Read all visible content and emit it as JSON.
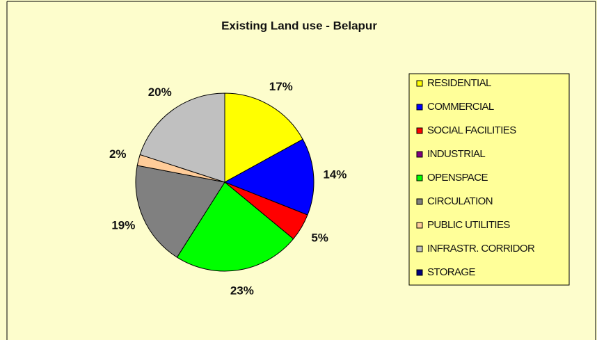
{
  "chart_data": {
    "type": "pie",
    "title": "Existing Land use - Belapur",
    "categories": [
      "RESIDENTIAL",
      "COMMERCIAL",
      "SOCIAL FACILITIES",
      "INDUSTRIAL",
      "OPENSPACE",
      "CIRCULATION",
      "PUBLIC UTILITIES",
      "INFRASTR. CORRIDOR",
      "STORAGE"
    ],
    "values": [
      17,
      14,
      5,
      0,
      23,
      19,
      2,
      20,
      0
    ],
    "value_labels": [
      "17%",
      "14%",
      "5%",
      null,
      "23%",
      "19%",
      "2%",
      "20%",
      null
    ],
    "colors": [
      "#ffff00",
      "#0000ff",
      "#ff0000",
      "#800080",
      "#00ff00",
      "#808080",
      "#ffcc99",
      "#c0c0c0",
      "#000080"
    ],
    "legend": "right"
  }
}
